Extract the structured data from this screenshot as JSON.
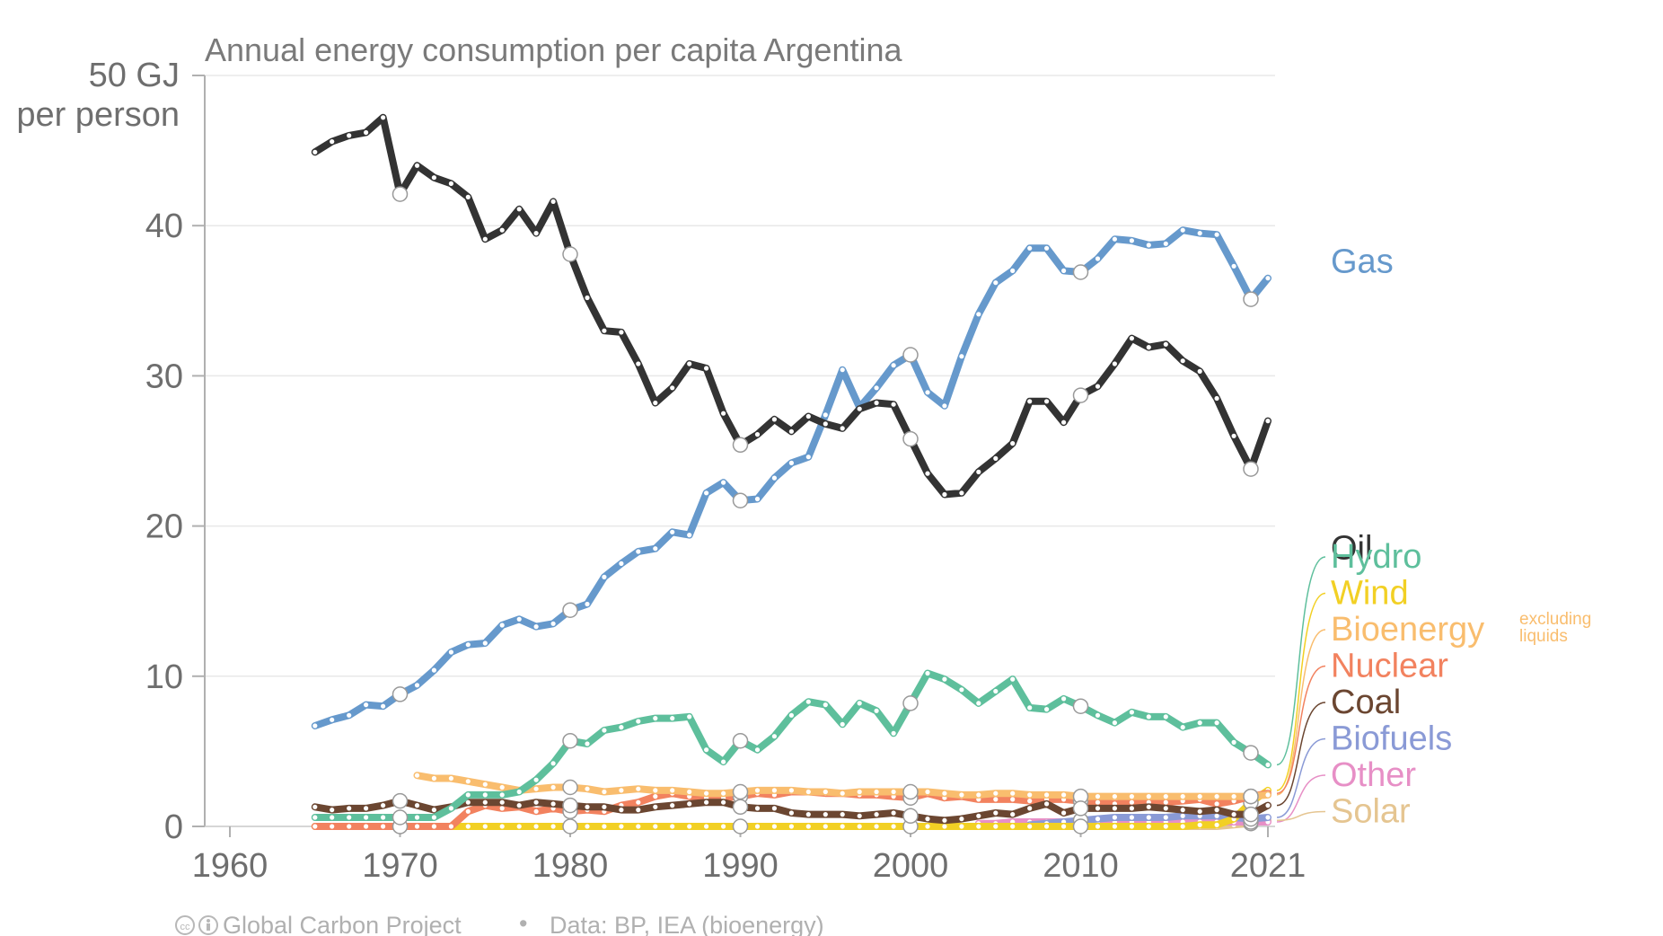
{
  "chart_data": {
    "type": "line",
    "title": "Annual energy consumption per capita Argentina",
    "y_unit_lines": [
      "50 GJ",
      "per person"
    ],
    "ylim": [
      0,
      50
    ],
    "y_ticks": [
      0,
      10,
      20,
      30,
      40
    ],
    "y_tick_labels": [
      "0",
      "10",
      "20",
      "30",
      "40"
    ],
    "xlim": [
      1960,
      2021
    ],
    "x_ticks": [
      1960,
      1970,
      1980,
      1990,
      2000,
      2010,
      2021
    ],
    "x_tick_labels": [
      "1960",
      "1970",
      "1980",
      "1990",
      "2000",
      "2010",
      "2021"
    ],
    "grid": true,
    "legend": "right",
    "series": [
      {
        "name": "Oil",
        "color": "#333333",
        "start_year": 1965,
        "values": [
          44.9,
          45.6,
          46.0,
          46.2,
          47.2,
          42.1,
          44.0,
          43.2,
          42.8,
          41.9,
          39.1,
          39.7,
          41.1,
          39.5,
          41.6,
          38.1,
          35.2,
          33.0,
          32.9,
          30.8,
          28.2,
          29.2,
          30.8,
          30.5,
          27.5,
          25.4,
          26.1,
          27.1,
          26.3,
          27.3,
          26.8,
          26.5,
          27.8,
          28.2,
          28.1,
          25.8,
          23.5,
          22.1,
          22.2,
          23.6,
          24.5,
          25.5,
          28.3,
          28.3,
          26.9,
          28.7,
          29.3,
          30.8,
          32.5,
          31.9,
          32.1,
          31.0,
          30.3,
          28.5,
          26.0,
          23.8,
          27.0
        ]
      },
      {
        "name": "Gas",
        "color": "#6699cc",
        "start_year": 1965,
        "values": [
          6.7,
          7.1,
          7.4,
          8.1,
          8.0,
          8.8,
          9.4,
          10.4,
          11.6,
          12.1,
          12.2,
          13.4,
          13.8,
          13.3,
          13.5,
          14.4,
          14.8,
          16.6,
          17.5,
          18.3,
          18.5,
          19.6,
          19.4,
          22.2,
          22.9,
          21.7,
          21.8,
          23.2,
          24.2,
          24.6,
          27.4,
          30.4,
          27.9,
          29.2,
          30.7,
          31.4,
          28.9,
          28.0,
          31.3,
          34.1,
          36.2,
          37.0,
          38.5,
          38.5,
          37.0,
          36.9,
          37.8,
          39.1,
          39.0,
          38.7,
          38.8,
          39.7,
          39.5,
          39.4,
          37.3,
          35.1,
          36.5
        ]
      },
      {
        "name": "Hydro",
        "color": "#5ebf9c",
        "start_year": 1965,
        "values": [
          0.6,
          0.6,
          0.6,
          0.6,
          0.6,
          0.6,
          0.6,
          0.6,
          1.2,
          2.1,
          2.1,
          2.1,
          2.3,
          3.1,
          4.2,
          5.7,
          5.5,
          6.4,
          6.6,
          7.0,
          7.2,
          7.2,
          7.3,
          5.1,
          4.3,
          5.7,
          5.1,
          6.0,
          7.4,
          8.3,
          8.1,
          6.8,
          8.2,
          7.7,
          6.2,
          8.2,
          10.2,
          9.8,
          9.1,
          8.2,
          9.0,
          9.8,
          7.9,
          7.8,
          8.5,
          8.0,
          7.4,
          6.9,
          7.6,
          7.3,
          7.3,
          6.6,
          6.9,
          6.9,
          5.6,
          4.9,
          4.1
        ]
      },
      {
        "name": "Wind",
        "color": "#f2d024",
        "start_year": 1965,
        "values": [
          0.0,
          0.0,
          0.0,
          0.0,
          0.0,
          0.0,
          0.0,
          0.0,
          0.0,
          0.0,
          0.0,
          0.0,
          0.0,
          0.0,
          0.0,
          0.0,
          0.0,
          0.0,
          0.0,
          0.0,
          0.0,
          0.0,
          0.0,
          0.0,
          0.0,
          0.0,
          0.0,
          0.0,
          0.0,
          0.0,
          0.0,
          0.0,
          0.0,
          0.0,
          0.0,
          0.0,
          0.0,
          0.0,
          0.0,
          0.0,
          0.0,
          0.0,
          0.0,
          0.0,
          0.0,
          0.0,
          0.0,
          0.0,
          0.0,
          0.0,
          0.0,
          0.0,
          0.1,
          0.1,
          0.5,
          1.6,
          2.4
        ]
      },
      {
        "name": "Bioenergy",
        "note_lines": [
          "excluding",
          "liquids"
        ],
        "color": "#f9bd6e",
        "start_year": 1971,
        "values": [
          3.4,
          3.2,
          3.2,
          3.0,
          2.8,
          2.6,
          2.4,
          2.5,
          2.6,
          2.6,
          2.5,
          2.3,
          2.4,
          2.5,
          2.4,
          2.4,
          2.3,
          2.2,
          2.2,
          2.3,
          2.4,
          2.4,
          2.4,
          2.3,
          2.3,
          2.2,
          2.3,
          2.3,
          2.3,
          2.3,
          2.3,
          2.2,
          2.1,
          2.1,
          2.2,
          2.2,
          2.1,
          2.1,
          2.1,
          2.0,
          2.0,
          2.0,
          2.0,
          2.0,
          2.0,
          2.0,
          2.0,
          2.0,
          2.0,
          2.0,
          2.1
        ]
      },
      {
        "name": "Nuclear",
        "color": "#f2825f",
        "start_year": 1965,
        "values": [
          0.0,
          0.0,
          0.0,
          0.0,
          0.0,
          0.0,
          0.0,
          0.0,
          0.0,
          1.0,
          1.4,
          1.2,
          1.3,
          1.0,
          1.2,
          1.0,
          1.1,
          1.0,
          1.4,
          1.6,
          2.0,
          2.2,
          2.0,
          1.9,
          1.9,
          2.0,
          2.2,
          2.1,
          2.3,
          2.3,
          2.2,
          2.2,
          2.1,
          2.1,
          2.0,
          1.9,
          2.2,
          1.9,
          2.0,
          1.8,
          1.8,
          1.8,
          1.7,
          1.8,
          1.8,
          1.7,
          1.6,
          1.5,
          1.6,
          1.6,
          1.6,
          1.7,
          1.8,
          1.5,
          1.7,
          2.0,
          2.2
        ]
      },
      {
        "name": "Coal",
        "color": "#6b4631",
        "start_year": 1965,
        "values": [
          1.3,
          1.1,
          1.2,
          1.2,
          1.4,
          1.7,
          1.4,
          1.1,
          1.3,
          1.6,
          1.6,
          1.6,
          1.4,
          1.6,
          1.5,
          1.4,
          1.3,
          1.3,
          1.1,
          1.1,
          1.3,
          1.4,
          1.5,
          1.6,
          1.6,
          1.3,
          1.2,
          1.2,
          0.9,
          0.8,
          0.8,
          0.8,
          0.7,
          0.8,
          0.9,
          0.7,
          0.5,
          0.4,
          0.5,
          0.7,
          0.9,
          0.8,
          1.2,
          1.5,
          0.9,
          1.2,
          1.2,
          1.2,
          1.2,
          1.3,
          1.2,
          1.1,
          1.0,
          1.1,
          0.8,
          0.8,
          1.4
        ]
      },
      {
        "name": "Biofuels",
        "color": "#8a9ad6",
        "start_year": 2007,
        "values": [
          0.1,
          0.2,
          0.3,
          0.4,
          0.5,
          0.6,
          0.6,
          0.6,
          0.6,
          0.7,
          0.7,
          0.7,
          0.6,
          0.5,
          0.6
        ]
      },
      {
        "name": "Other",
        "color": "#e78fc6",
        "start_year": 2004,
        "values": [
          0.2,
          0.2,
          0.3,
          0.3,
          0.3,
          0.3,
          0.3,
          0.3,
          0.3,
          0.3,
          0.3,
          0.3,
          0.3,
          0.3,
          0.3,
          0.3,
          0.3,
          0.3
        ]
      },
      {
        "name": "Solar",
        "color": "#e5c591",
        "start_year": 2014,
        "values": [
          0.0,
          0.0,
          0.0,
          0.0,
          0.0,
          0.1,
          0.2,
          0.4
        ]
      }
    ]
  },
  "footer": {
    "credit": "Global Carbon Project",
    "separator": "•",
    "source": "Data: BP, IEA (bioenergy)"
  }
}
